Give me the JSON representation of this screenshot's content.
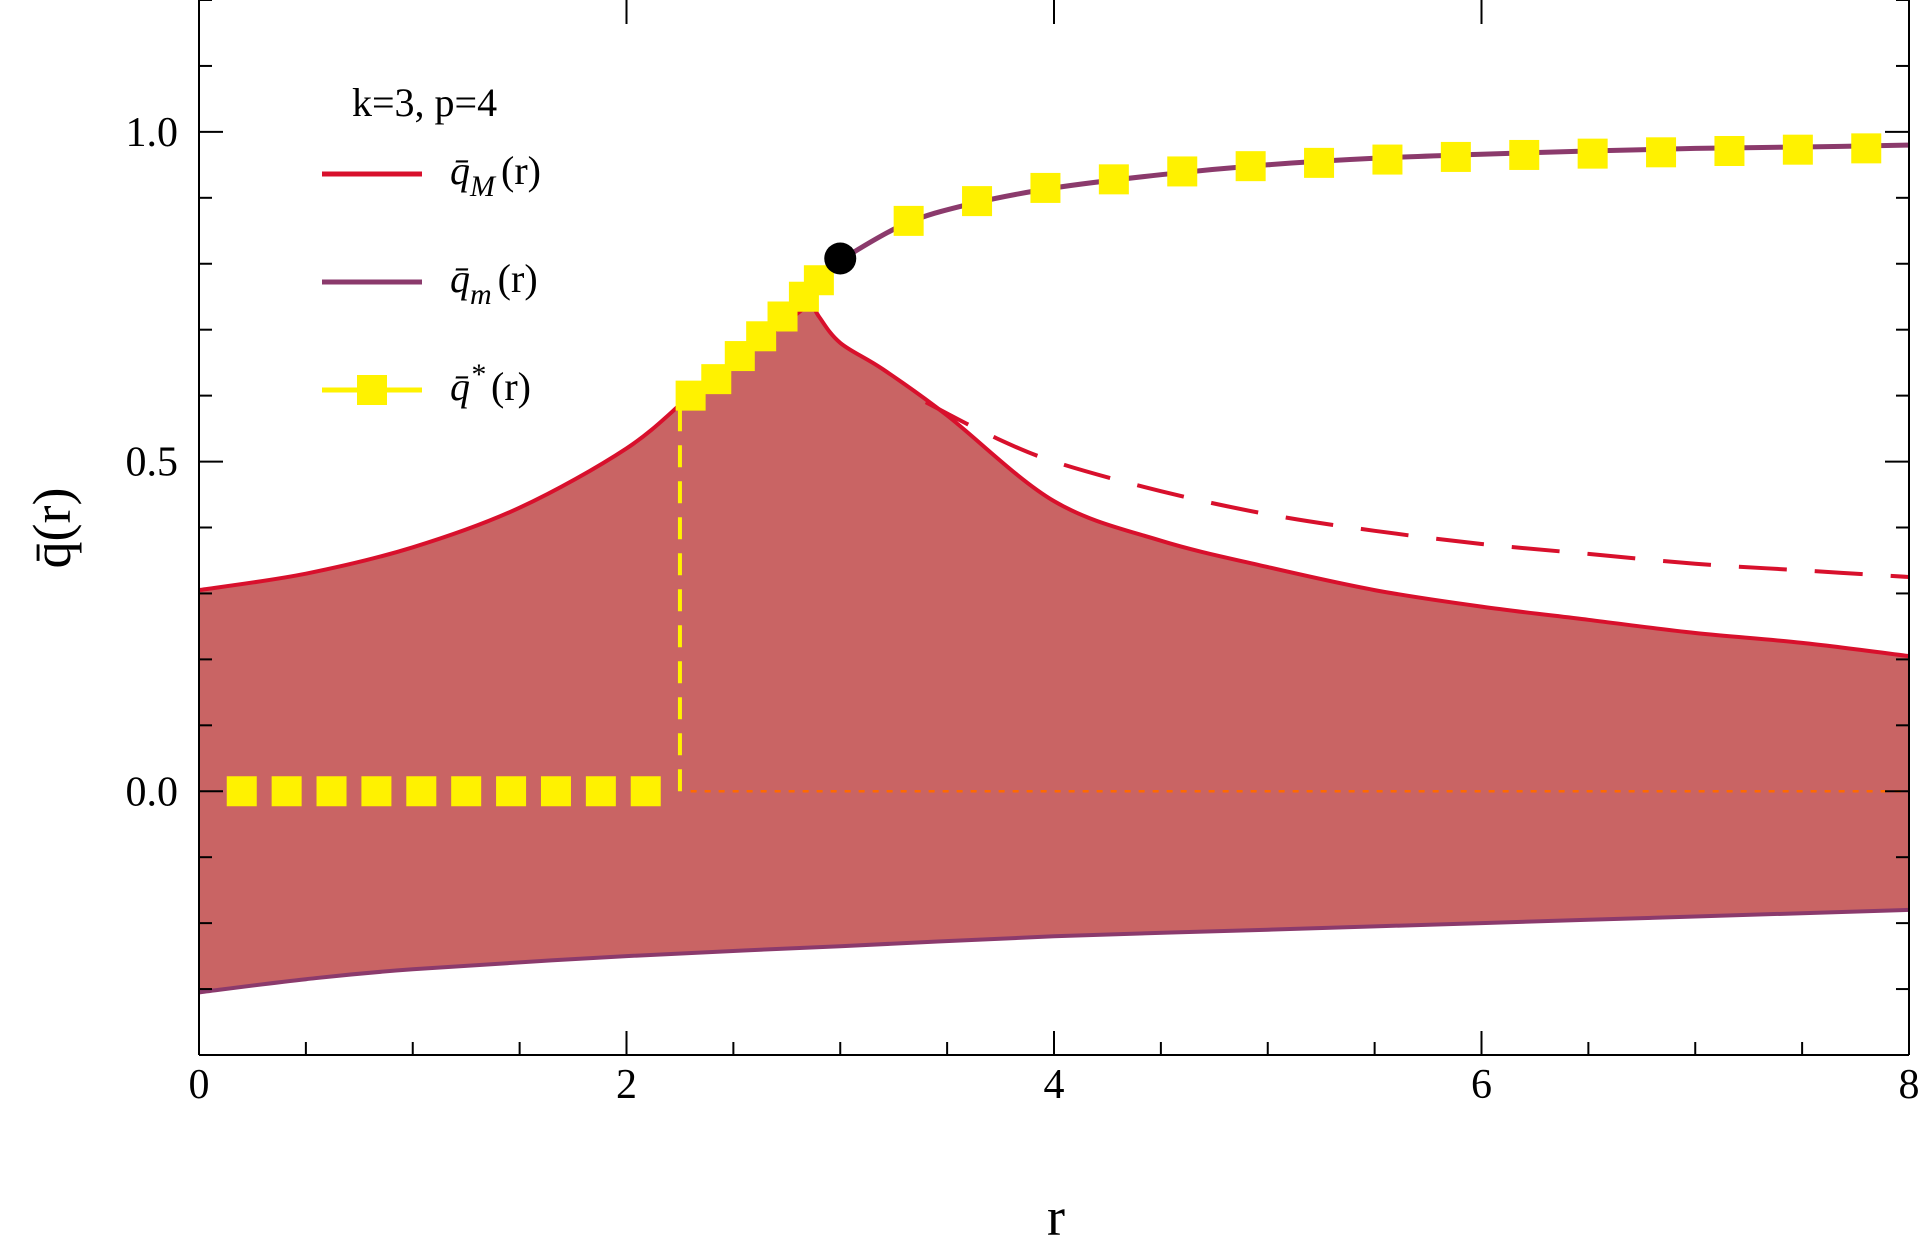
{
  "chart_data": {
    "type": "line",
    "annotation": "k=3, p=4",
    "xlabel": "r",
    "ylabel": "q̄(r)",
    "xlim": [
      0,
      8
    ],
    "ylim": [
      -0.4,
      1.2
    ],
    "x_ticks": [
      {
        "value": 0,
        "label": "0"
      },
      {
        "value": 2,
        "label": "2"
      },
      {
        "value": 4,
        "label": "4"
      },
      {
        "value": 6,
        "label": "6"
      },
      {
        "value": 8,
        "label": "8"
      }
    ],
    "y_ticks": [
      {
        "value": 0.0,
        "label": "0.0"
      },
      {
        "value": 0.5,
        "label": "0.5"
      },
      {
        "value": 1.0,
        "label": "1.0"
      }
    ],
    "grid": false,
    "legend_position": "top-left",
    "colors": {
      "qM": "#d8102c",
      "qm": "#8b3a6c",
      "qstar": "#fff200",
      "fill": "#c96464",
      "zero_line": "#ff6a00",
      "point": "#000000"
    },
    "legend": [
      {
        "symbol": "q̄",
        "sub": "M",
        "arg": "(r)",
        "series": "qM"
      },
      {
        "symbol": "q̄",
        "sub": "m",
        "arg": "(r)",
        "series": "qm"
      },
      {
        "symbol": "q̄",
        "sub": "*",
        "arg": "(r)",
        "series": "qstar"
      }
    ],
    "series": {
      "qM_upper": {
        "x": [
          0,
          0.5,
          1.0,
          1.5,
          2.0,
          2.3,
          2.5,
          2.7,
          2.82,
          2.86,
          2.9,
          3.0,
          3.2,
          3.5,
          4.0,
          4.5,
          5.0,
          5.5,
          6.0,
          6.5,
          7.0,
          7.5,
          8.0
        ],
        "y": [
          0.305,
          0.33,
          0.37,
          0.43,
          0.52,
          0.6,
          0.65,
          0.7,
          0.73,
          0.742,
          0.72,
          0.68,
          0.64,
          0.57,
          0.44,
          0.38,
          0.34,
          0.305,
          0.28,
          0.26,
          0.24,
          0.225,
          0.205
        ]
      },
      "qM_dashed": {
        "x": [
          3.4,
          3.7,
          4.0,
          4.5,
          5.0,
          5.5,
          6.0,
          6.5,
          7.0,
          7.5,
          8.0
        ],
        "y": [
          0.59,
          0.54,
          0.5,
          0.455,
          0.42,
          0.395,
          0.375,
          0.36,
          0.345,
          0.335,
          0.325
        ]
      },
      "qm_lower": {
        "x": [
          0,
          0.5,
          1.0,
          2.0,
          3.0,
          4.0,
          5.0,
          6.0,
          7.0,
          8.0
        ],
        "y": [
          -0.305,
          -0.285,
          -0.27,
          -0.25,
          -0.235,
          -0.22,
          -0.21,
          -0.2,
          -0.19,
          -0.18
        ]
      },
      "qm_upper": {
        "x": [
          2.95,
          3.0,
          3.3,
          3.6,
          4.0,
          4.5,
          5.0,
          5.5,
          6.0,
          6.5,
          7.0,
          7.5,
          8.0
        ],
        "y": [
          0.79,
          0.805,
          0.86,
          0.89,
          0.915,
          0.935,
          0.95,
          0.96,
          0.966,
          0.971,
          0.975,
          0.977,
          0.98
        ]
      },
      "qstar_markers": {
        "x": [
          0.2,
          0.41,
          0.62,
          0.83,
          1.04,
          1.25,
          1.46,
          1.67,
          1.88,
          2.09,
          2.3,
          2.42,
          2.53,
          2.63,
          2.73,
          2.83,
          2.9,
          3.32,
          3.64,
          3.96,
          4.28,
          4.6,
          4.92,
          5.24,
          5.56,
          5.88,
          6.2,
          6.52,
          6.84,
          7.16,
          7.48,
          7.8
        ],
        "y": [
          0,
          0,
          0,
          0,
          0,
          0,
          0,
          0,
          0,
          0,
          0.6,
          0.625,
          0.66,
          0.69,
          0.72,
          0.75,
          0.775,
          0.865,
          0.895,
          0.915,
          0.928,
          0.94,
          0.948,
          0.953,
          0.958,
          0.962,
          0.965,
          0.967,
          0.969,
          0.971,
          0.973,
          0.975
        ]
      },
      "qstar_jump": {
        "x": [
          2.25,
          2.25
        ],
        "y": [
          0,
          0.6
        ]
      },
      "critical_point": {
        "x": 3.0,
        "y": 0.808
      }
    }
  }
}
